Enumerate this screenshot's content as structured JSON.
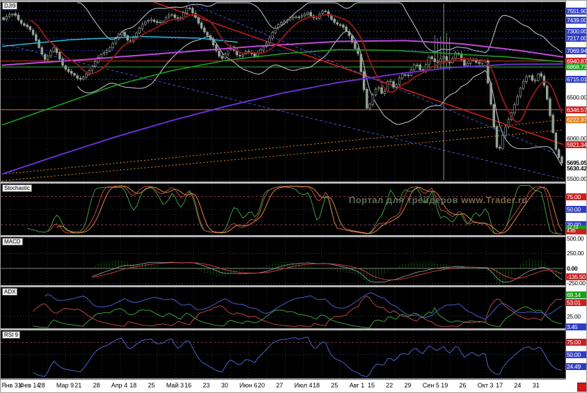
{
  "app": {
    "symbol_label": "DJI9",
    "watermark_text": "Портал для трейдеров",
    "watermark_site": "www.Trader.ru"
  },
  "colors": {
    "background": "#000000",
    "badge_blue": "#2e3ec4",
    "badge_red": "#cc2020",
    "badge_green": "#17a317",
    "badge_orange": "#e07c1e",
    "bull_candle": "#030303",
    "bear_candle": "#8fa08f",
    "candle_outline": "#a8b4a8",
    "ma_fast": "#8b1a1a",
    "ma_green": "#1f9f1f",
    "ma_purple": "#6a2fd0",
    "ma_violet": "#c04ad6",
    "ma_cyan": "#2ec8e8"
  },
  "right_scale": {
    "main": [
      {
        "t": "7551.90",
        "v": 7551.9,
        "s": "blue"
      },
      {
        "t": "7439.00",
        "v": 7439.0,
        "s": "blue"
      },
      {
        "t": "7300.00",
        "v": 7300.0,
        "s": "blue"
      },
      {
        "t": "7217.00",
        "v": 7217.0,
        "s": "blue"
      },
      {
        "t": "7069.94",
        "v": 7069.94,
        "s": "blue"
      },
      {
        "t": "6940.87",
        "v": 6940.87,
        "s": "red"
      },
      {
        "t": "6868.73",
        "v": 6868.73,
        "s": "green"
      },
      {
        "t": "6715.01",
        "v": 6715.01,
        "s": "blue"
      },
      {
        "t": "6500.00",
        "v": 6500.0,
        "s": "plain"
      },
      {
        "t": "6346.57",
        "v": 6346.57,
        "s": "red"
      },
      {
        "t": "6222.37",
        "v": 6222.37,
        "s": "orange"
      },
      {
        "t": "6000.00",
        "v": 6000.0,
        "s": "plain"
      },
      {
        "t": "5921.34",
        "v": 5921.34,
        "s": "red"
      },
      {
        "t": "5695.05",
        "v": 5695.05,
        "s": "plain-bold"
      },
      {
        "t": "5630.42",
        "v": 5630.42,
        "s": "plain-bold"
      },
      {
        "t": "5500.00",
        "v": 5500.0,
        "s": "plain"
      }
    ],
    "stochastic": [
      {
        "t": "75.00",
        "v": 75,
        "s": "red"
      },
      {
        "t": "50.00",
        "v": 50,
        "s": "blue"
      },
      {
        "t": "20.00",
        "v": 20,
        "s": "blue"
      },
      {
        "t": "12.73",
        "v": 12.73,
        "s": "tiny-green"
      },
      {
        "t": "4.85",
        "v": 4.85,
        "s": "tiny-red"
      }
    ],
    "macd": [
      {
        "t": "500.00",
        "v": 500,
        "s": "plain"
      },
      {
        "t": "250.00",
        "v": 250,
        "s": "plain"
      },
      {
        "t": "0.00",
        "v": 0,
        "s": "plain-bold"
      },
      {
        "t": "-135.50",
        "v": -135.5,
        "s": "red"
      },
      {
        "t": "-250.00",
        "v": -250,
        "s": "plain"
      }
    ],
    "adx": [
      {
        "t": "69.14",
        "v": 69.14,
        "s": "green"
      },
      {
        "t": "53.01",
        "v": 53.01,
        "s": "red"
      },
      {
        "t": "25.00",
        "v": 25,
        "s": "plain"
      },
      {
        "t": "3.45",
        "v": 3.45,
        "s": "blue"
      }
    ],
    "rsi": [
      {
        "t": "75.00",
        "v": 75,
        "s": "red"
      },
      {
        "t": "50.00",
        "v": 50,
        "s": "blue"
      },
      {
        "t": "24.49",
        "v": 24.49,
        "s": "blue"
      }
    ]
  },
  "chart_data": {
    "type": "candlestick",
    "symbol": "DJI9",
    "bars": 190,
    "last_price": 5695.05,
    "prev_close_ref": 5630.42,
    "price_axis": {
      "min": 5470,
      "max": 7660,
      "gridlines": [
        5500,
        6000,
        6500,
        7000,
        7500
      ]
    },
    "x_labels": [
      "Янв 31",
      "Фев 14",
      "28",
      "Мар 9",
      "21",
      "28",
      "Апр 4",
      "18",
      "25",
      "Май 3",
      "16",
      "23",
      "30",
      "Июн 6",
      "20",
      "27",
      "Июл 4",
      "18",
      "25",
      "Авг 1",
      "15",
      "22",
      "29",
      "Сен 5",
      "19",
      "26",
      "Окт 3",
      "17",
      "24",
      "31"
    ],
    "close_anchors": [
      [
        0,
        7430
      ],
      [
        0.02,
        7500
      ],
      [
        0.045,
        7340
      ],
      [
        0.06,
        7180
      ],
      [
        0.075,
        6980
      ],
      [
        0.09,
        7080
      ],
      [
        0.105,
        6900
      ],
      [
        0.12,
        6780
      ],
      [
        0.135,
        6680
      ],
      [
        0.15,
        6830
      ],
      [
        0.17,
        6980
      ],
      [
        0.19,
        7130
      ],
      [
        0.21,
        7260
      ],
      [
        0.225,
        7170
      ],
      [
        0.245,
        7340
      ],
      [
        0.265,
        7480
      ],
      [
        0.285,
        7410
      ],
      [
        0.3,
        7520
      ],
      [
        0.315,
        7450
      ],
      [
        0.33,
        7560
      ],
      [
        0.345,
        7470
      ],
      [
        0.36,
        7300
      ],
      [
        0.375,
        7140
      ],
      [
        0.39,
        7000
      ],
      [
        0.405,
        7110
      ],
      [
        0.42,
        6980
      ],
      [
        0.435,
        7070
      ],
      [
        0.45,
        6960
      ],
      [
        0.465,
        7130
      ],
      [
        0.48,
        7290
      ],
      [
        0.5,
        7430
      ],
      [
        0.515,
        7500
      ],
      [
        0.53,
        7430
      ],
      [
        0.545,
        7530
      ],
      [
        0.56,
        7450
      ],
      [
        0.575,
        7550
      ],
      [
        0.59,
        7470
      ],
      [
        0.605,
        7370
      ],
      [
        0.62,
        7240
      ],
      [
        0.635,
        7040
      ],
      [
        0.645,
        6580
      ],
      [
        0.652,
        6270
      ],
      [
        0.66,
        6490
      ],
      [
        0.67,
        6670
      ],
      [
        0.68,
        6520
      ],
      [
        0.69,
        6720
      ],
      [
        0.7,
        6610
      ],
      [
        0.712,
        6830
      ],
      [
        0.725,
        6750
      ],
      [
        0.738,
        6900
      ],
      [
        0.75,
        6810
      ],
      [
        0.762,
        6970
      ],
      [
        0.775,
        6880
      ],
      [
        0.788,
        7030
      ],
      [
        0.8,
        6930
      ],
      [
        0.812,
        7060
      ],
      [
        0.825,
        6910
      ],
      [
        0.838,
        6990
      ],
      [
        0.85,
        6860
      ],
      [
        0.862,
        6950
      ],
      [
        0.872,
        6480
      ],
      [
        0.88,
        6040
      ],
      [
        0.886,
        5760
      ],
      [
        0.894,
        6010
      ],
      [
        0.905,
        6260
      ],
      [
        0.915,
        6440
      ],
      [
        0.928,
        6640
      ],
      [
        0.94,
        6780
      ],
      [
        0.95,
        6700
      ],
      [
        0.96,
        6810
      ],
      [
        0.97,
        6560
      ],
      [
        0.98,
        6210
      ],
      [
        0.99,
        5860
      ],
      [
        1,
        5695
      ]
    ],
    "fib_levels": [
      7551.9,
      7439.0,
      7300.0,
      7217.0,
      7069.94,
      6715.01
    ],
    "h_lines": [
      {
        "price": 6940.87,
        "color": "#e03434"
      },
      {
        "price": 6868.73,
        "color": "#2fae2f"
      },
      {
        "price": 6346.57,
        "color": "#e06464"
      }
    ],
    "trendlines": [
      {
        "x1": 0.27,
        "p1": 7660,
        "x2": 1.0,
        "p2": 5921.34,
        "color": "#dd2222",
        "width": 1.4,
        "dash": ""
      },
      {
        "x1": 0.0,
        "p1": 5560,
        "x2": 1.0,
        "p2": 6222.37,
        "color": "#e08a2e",
        "width": 1,
        "dash": "2 3"
      },
      {
        "x1": 0.0,
        "p1": 5480,
        "x2": 1.0,
        "p2": 6100,
        "color": "#e08a2e",
        "width": 1,
        "dash": "2 3"
      },
      {
        "x1": 0.0,
        "p1": 7150,
        "x2": 1.0,
        "p2": 5500,
        "color": "#4450cc",
        "width": 1,
        "dash": "4 3"
      },
      {
        "x1": 0.33,
        "p1": 7660,
        "x2": 1.0,
        "p2": 5770,
        "color": "#4450cc",
        "width": 1,
        "dash": "4 3"
      }
    ],
    "ma_green": [
      [
        0,
        6160
      ],
      [
        0.1,
        6400
      ],
      [
        0.2,
        6640
      ],
      [
        0.3,
        6820
      ],
      [
        0.4,
        6950
      ],
      [
        0.5,
        7030
      ],
      [
        0.6,
        7080
      ],
      [
        0.7,
        7070
      ],
      [
        0.8,
        7030
      ],
      [
        0.9,
        6990
      ],
      [
        1,
        6930
      ]
    ],
    "ma_purple": [
      [
        0,
        5560
      ],
      [
        0.1,
        5790
      ],
      [
        0.2,
        6010
      ],
      [
        0.3,
        6210
      ],
      [
        0.4,
        6390
      ],
      [
        0.5,
        6550
      ],
      [
        0.6,
        6680
      ],
      [
        0.7,
        6780
      ],
      [
        0.8,
        6860
      ],
      [
        0.9,
        6900
      ],
      [
        1,
        6905
      ]
    ],
    "ma_violet": [
      [
        0,
        6890
      ],
      [
        0.15,
        6960
      ],
      [
        0.3,
        7040
      ],
      [
        0.45,
        7120
      ],
      [
        0.6,
        7180
      ],
      [
        0.72,
        7190
      ],
      [
        0.82,
        7150
      ],
      [
        0.92,
        7070
      ],
      [
        1,
        6990
      ]
    ],
    "ma_cyan": [
      [
        0,
        7120
      ],
      [
        0.12,
        7200
      ],
      [
        0.25,
        7240
      ],
      [
        0.35,
        7220
      ],
      [
        0.42,
        7170
      ]
    ],
    "bollinger": {
      "period": 26,
      "mult": 2
    },
    "vertical_line_x": 0.787,
    "indicators": {
      "stochastic": {
        "label": "Stochastic",
        "levels": [
          75,
          50,
          20
        ],
        "last_values": [
          12.73,
          4.85
        ]
      },
      "macd": {
        "label": "MACD",
        "levels": [
          500,
          250,
          0,
          -250
        ],
        "range": [
          -280,
          520
        ],
        "last_value": -135.5
      },
      "adx": {
        "label": "ADX",
        "levels": [
          25
        ],
        "range": [
          0,
          85
        ],
        "last_values": {
          "plus_di": 69.14,
          "minus_di": 53.01,
          "adx": 3.45
        }
      },
      "rsi": {
        "label": "RSI 9",
        "period": 9,
        "levels": [
          75,
          50
        ],
        "last_value": 24.49
      }
    }
  }
}
